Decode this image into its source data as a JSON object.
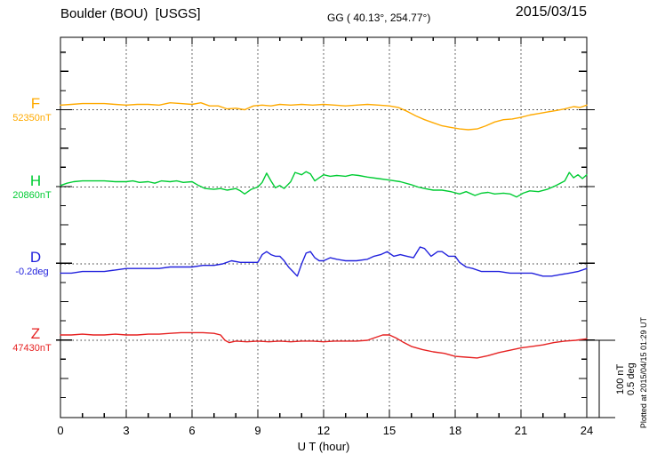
{
  "header": {
    "station": "Boulder (BOU)  [USGS]",
    "coords": "GG ( 40.13°, 254.77°)",
    "date": "2015/03/15"
  },
  "footer": {
    "xlabel": "U T (hour)"
  },
  "scale_bar": {
    "line1": "100 nT",
    "line2": "0.5 deg"
  },
  "watermark": {
    "plotted_at": "Plotted at 2015/04/15 01:29 UT"
  },
  "chart_data": {
    "type": "line",
    "title": "Boulder (BOU)  [USGS]",
    "subtitle": "GG ( 40.13°, 254.77°)",
    "date": "2015/03/15",
    "xlabel": "U T (hour)",
    "x_range": [
      0,
      24
    ],
    "x_tick_hours": [
      0,
      3,
      6,
      9,
      12,
      15,
      18,
      21,
      24
    ],
    "x_tick_labels": [
      "0",
      "3",
      "6",
      "9",
      "12",
      "15",
      "18",
      "21",
      "24"
    ],
    "grid_hours": [
      3,
      6,
      9,
      12,
      15,
      18,
      21
    ],
    "grid": "dotted vertical every 3h, dotted horizontal at each trace baseline",
    "units_per_division": {
      "nT": 100,
      "deg": 0.5
    },
    "series": [
      {
        "name": "F",
        "unit": "nT",
        "baseline_value": 52350,
        "baseline_label": "52350nT",
        "color": "#FFAA00",
        "points": [
          [
            0,
            52356
          ],
          [
            0.5,
            52357
          ],
          [
            1,
            52358
          ],
          [
            1.5,
            52358
          ],
          [
            2,
            52358
          ],
          [
            2.5,
            52357
          ],
          [
            3,
            52356
          ],
          [
            3.5,
            52357
          ],
          [
            4,
            52357
          ],
          [
            4.5,
            52356
          ],
          [
            5,
            52359
          ],
          [
            5.5,
            52358
          ],
          [
            6,
            52357
          ],
          [
            6.4,
            52359
          ],
          [
            6.8,
            52355
          ],
          [
            7.2,
            52355
          ],
          [
            7.6,
            52351
          ],
          [
            8,
            52352
          ],
          [
            8.4,
            52350
          ],
          [
            8.8,
            52355
          ],
          [
            9.2,
            52356
          ],
          [
            9.6,
            52355
          ],
          [
            10,
            52357
          ],
          [
            10.5,
            52356
          ],
          [
            11,
            52357
          ],
          [
            11.5,
            52356
          ],
          [
            12,
            52357
          ],
          [
            12.5,
            52356
          ],
          [
            13,
            52355
          ],
          [
            13.5,
            52356
          ],
          [
            14,
            52357
          ],
          [
            14.5,
            52356
          ],
          [
            15,
            52355
          ],
          [
            15.4,
            52353
          ],
          [
            15.8,
            52348
          ],
          [
            16.2,
            52342
          ],
          [
            16.6,
            52337
          ],
          [
            17,
            52333
          ],
          [
            17.4,
            52329
          ],
          [
            17.8,
            52327
          ],
          [
            18.2,
            52325
          ],
          [
            18.6,
            52324
          ],
          [
            19,
            52325
          ],
          [
            19.4,
            52329
          ],
          [
            19.8,
            52334
          ],
          [
            20.2,
            52337
          ],
          [
            20.6,
            52338
          ],
          [
            21,
            52340
          ],
          [
            21.4,
            52343
          ],
          [
            21.8,
            52345
          ],
          [
            22.2,
            52347
          ],
          [
            22.6,
            52349
          ],
          [
            23,
            52351
          ],
          [
            23.4,
            52354
          ],
          [
            23.7,
            52353
          ],
          [
            24,
            52356
          ]
        ]
      },
      {
        "name": "H",
        "unit": "nT",
        "baseline_value": 20860,
        "baseline_label": "20860nT",
        "color": "#00CC33",
        "points": [
          [
            0,
            20862
          ],
          [
            0.3,
            20865
          ],
          [
            0.6,
            20867
          ],
          [
            1,
            20868
          ],
          [
            1.5,
            20868
          ],
          [
            2,
            20868
          ],
          [
            2.5,
            20867
          ],
          [
            3,
            20867
          ],
          [
            3.3,
            20868
          ],
          [
            3.6,
            20866
          ],
          [
            4,
            20867
          ],
          [
            4.3,
            20865
          ],
          [
            4.6,
            20868
          ],
          [
            5,
            20867
          ],
          [
            5.3,
            20868
          ],
          [
            5.6,
            20866
          ],
          [
            6,
            20867
          ],
          [
            6.3,
            20862
          ],
          [
            6.6,
            20858
          ],
          [
            7,
            20857
          ],
          [
            7.3,
            20858
          ],
          [
            7.6,
            20856
          ],
          [
            8,
            20858
          ],
          [
            8.2,
            20855
          ],
          [
            8.4,
            20851
          ],
          [
            8.7,
            20857
          ],
          [
            9,
            20860
          ],
          [
            9.2,
            20866
          ],
          [
            9.4,
            20878
          ],
          [
            9.6,
            20868
          ],
          [
            9.8,
            20859
          ],
          [
            10,
            20862
          ],
          [
            10.2,
            20858
          ],
          [
            10.5,
            20867
          ],
          [
            10.7,
            20879
          ],
          [
            11,
            20876
          ],
          [
            11.2,
            20880
          ],
          [
            11.4,
            20877
          ],
          [
            11.6,
            20868
          ],
          [
            11.8,
            20872
          ],
          [
            12,
            20876
          ],
          [
            12.3,
            20874
          ],
          [
            12.6,
            20875
          ],
          [
            13,
            20874
          ],
          [
            13.3,
            20876
          ],
          [
            13.6,
            20875
          ],
          [
            14,
            20873
          ],
          [
            14.5,
            20871
          ],
          [
            15,
            20869
          ],
          [
            15.5,
            20867
          ],
          [
            16,
            20863
          ],
          [
            16.3,
            20860
          ],
          [
            16.6,
            20858
          ],
          [
            17,
            20856
          ],
          [
            17.4,
            20856
          ],
          [
            17.8,
            20854
          ],
          [
            18.2,
            20851
          ],
          [
            18.5,
            20854
          ],
          [
            18.9,
            20849
          ],
          [
            19.2,
            20852
          ],
          [
            19.5,
            20853
          ],
          [
            19.8,
            20851
          ],
          [
            20.2,
            20852
          ],
          [
            20.5,
            20851
          ],
          [
            20.8,
            20847
          ],
          [
            21.1,
            20852
          ],
          [
            21.4,
            20855
          ],
          [
            21.8,
            20854
          ],
          [
            22.2,
            20857
          ],
          [
            22.6,
            20862
          ],
          [
            23,
            20868
          ],
          [
            23.2,
            20879
          ],
          [
            23.4,
            20872
          ],
          [
            23.6,
            20876
          ],
          [
            23.8,
            20871
          ],
          [
            24,
            20876
          ]
        ]
      },
      {
        "name": "D",
        "unit": "deg",
        "baseline_value": -0.2,
        "baseline_label": "-0.2deg",
        "color": "#2222DD",
        "points": [
          [
            0,
            -0.26
          ],
          [
            0.5,
            -0.26
          ],
          [
            1,
            -0.25
          ],
          [
            1.5,
            -0.25
          ],
          [
            2,
            -0.25
          ],
          [
            2.5,
            -0.24
          ],
          [
            3,
            -0.23
          ],
          [
            3.5,
            -0.23
          ],
          [
            4,
            -0.23
          ],
          [
            4.5,
            -0.23
          ],
          [
            5,
            -0.22
          ],
          [
            5.5,
            -0.22
          ],
          [
            6,
            -0.22
          ],
          [
            6.5,
            -0.21
          ],
          [
            7,
            -0.21
          ],
          [
            7.4,
            -0.2
          ],
          [
            7.8,
            -0.18
          ],
          [
            8.2,
            -0.19
          ],
          [
            8.6,
            -0.19
          ],
          [
            9,
            -0.19
          ],
          [
            9.2,
            -0.14
          ],
          [
            9.4,
            -0.12
          ],
          [
            9.6,
            -0.14
          ],
          [
            9.8,
            -0.15
          ],
          [
            10,
            -0.15
          ],
          [
            10.2,
            -0.18
          ],
          [
            10.4,
            -0.22
          ],
          [
            10.6,
            -0.25
          ],
          [
            10.8,
            -0.28
          ],
          [
            11,
            -0.2
          ],
          [
            11.2,
            -0.13
          ],
          [
            11.4,
            -0.12
          ],
          [
            11.6,
            -0.16
          ],
          [
            11.8,
            -0.18
          ],
          [
            12,
            -0.18
          ],
          [
            12.3,
            -0.16
          ],
          [
            12.6,
            -0.17
          ],
          [
            13,
            -0.18
          ],
          [
            13.5,
            -0.18
          ],
          [
            14,
            -0.17
          ],
          [
            14.3,
            -0.15
          ],
          [
            14.6,
            -0.14
          ],
          [
            14.9,
            -0.12
          ],
          [
            15.2,
            -0.15
          ],
          [
            15.5,
            -0.14
          ],
          [
            15.8,
            -0.15
          ],
          [
            16.1,
            -0.16
          ],
          [
            16.4,
            -0.09
          ],
          [
            16.6,
            -0.1
          ],
          [
            16.9,
            -0.15
          ],
          [
            17.2,
            -0.12
          ],
          [
            17.4,
            -0.12
          ],
          [
            17.7,
            -0.15
          ],
          [
            18,
            -0.15
          ],
          [
            18.2,
            -0.19
          ],
          [
            18.5,
            -0.22
          ],
          [
            18.8,
            -0.23
          ],
          [
            19.2,
            -0.25
          ],
          [
            19.6,
            -0.25
          ],
          [
            20,
            -0.25
          ],
          [
            20.5,
            -0.26
          ],
          [
            21,
            -0.26
          ],
          [
            21.5,
            -0.26
          ],
          [
            22,
            -0.28
          ],
          [
            22.4,
            -0.28
          ],
          [
            22.8,
            -0.27
          ],
          [
            23.2,
            -0.26
          ],
          [
            23.6,
            -0.25
          ],
          [
            24,
            -0.23
          ]
        ]
      },
      {
        "name": "Z",
        "unit": "nT",
        "baseline_value": 47430,
        "baseline_label": "47430nT",
        "color": "#E62222",
        "points": [
          [
            0,
            47437
          ],
          [
            0.5,
            47437
          ],
          [
            1,
            47438
          ],
          [
            1.5,
            47437
          ],
          [
            2,
            47437
          ],
          [
            2.5,
            47438
          ],
          [
            3,
            47437
          ],
          [
            3.5,
            47437
          ],
          [
            4,
            47438
          ],
          [
            4.5,
            47438
          ],
          [
            5,
            47439
          ],
          [
            5.5,
            47440
          ],
          [
            6,
            47440
          ],
          [
            6.5,
            47440
          ],
          [
            7,
            47439
          ],
          [
            7.3,
            47437
          ],
          [
            7.5,
            47430
          ],
          [
            7.7,
            47427
          ],
          [
            8,
            47429
          ],
          [
            8.5,
            47428
          ],
          [
            9,
            47429
          ],
          [
            9.5,
            47428
          ],
          [
            10,
            47429
          ],
          [
            10.5,
            47428
          ],
          [
            11,
            47429
          ],
          [
            11.5,
            47429
          ],
          [
            12,
            47428
          ],
          [
            12.5,
            47429
          ],
          [
            13,
            47429
          ],
          [
            13.5,
            47429
          ],
          [
            14,
            47430
          ],
          [
            14.3,
            47433
          ],
          [
            14.7,
            47437
          ],
          [
            15,
            47437
          ],
          [
            15.3,
            47433
          ],
          [
            15.6,
            47428
          ],
          [
            16,
            47422
          ],
          [
            16.5,
            47418
          ],
          [
            17,
            47415
          ],
          [
            17.5,
            47413
          ],
          [
            18,
            47409
          ],
          [
            18.5,
            47408
          ],
          [
            19,
            47407
          ],
          [
            19.5,
            47410
          ],
          [
            20,
            47414
          ],
          [
            20.5,
            47417
          ],
          [
            21,
            47420
          ],
          [
            21.5,
            47422
          ],
          [
            22,
            47424
          ],
          [
            22.5,
            47427
          ],
          [
            23,
            47429
          ],
          [
            23.5,
            47430
          ],
          [
            24,
            47432
          ]
        ]
      }
    ],
    "scale_bar_labels": [
      "100 nT",
      "0.5 deg"
    ],
    "legend_position": "left baseline labels",
    "annotation": "Plotted at 2015/04/15 01:29 UT"
  }
}
